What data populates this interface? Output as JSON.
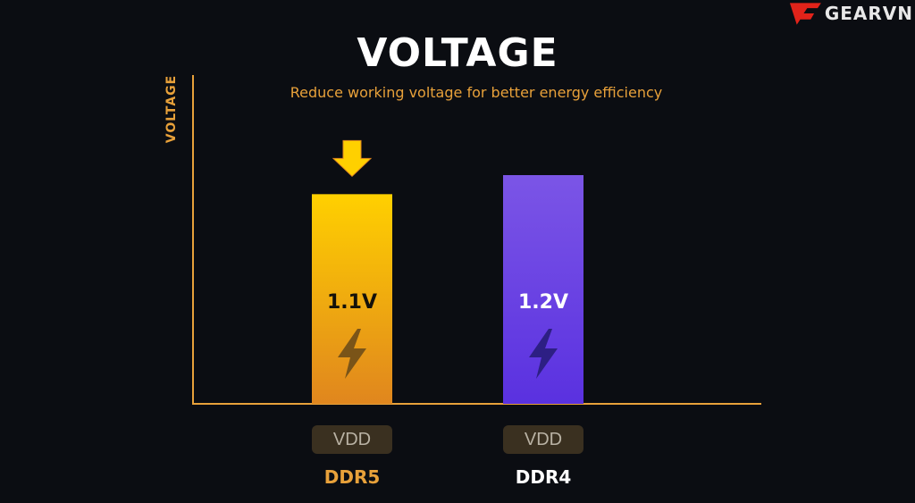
{
  "brand": {
    "name": "GEARVN",
    "color": "#e2231a"
  },
  "chart_data": {
    "type": "bar",
    "title": "VOLTAGE",
    "subtitle": "Reduce working voltage for better energy efficiency",
    "ylabel": "VOLTAGE",
    "xlabel": "",
    "categories": [
      "DDR5",
      "DDR4"
    ],
    "values": [
      1.1,
      1.2
    ],
    "value_labels": [
      "1.1V",
      "1.2V"
    ],
    "sublabels": [
      "VDD",
      "VDD"
    ],
    "ylim": [
      0,
      1.65
    ],
    "grid": false,
    "colors": {
      "DDR5": [
        "#ffd000",
        "#e0861e"
      ],
      "DDR4": [
        "#7b55e6",
        "#5a31e0"
      ],
      "axis": "#e8a13a",
      "ddr5_label": "#e8a13a",
      "ddr4_label": "#ffffff"
    },
    "annotations": {
      "DDR5": "down-arrow",
      "icons": "lightning-bolt-icon"
    }
  }
}
